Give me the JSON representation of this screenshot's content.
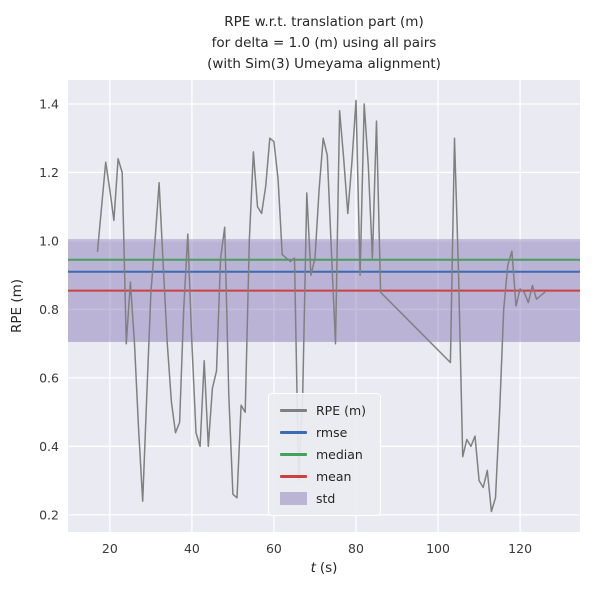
{
  "figure": {
    "title_lines": [
      "RPE w.r.t. translation part (m)",
      "for delta = 1.0 (m) using all pairs",
      "(with Sim(3) Umeyama alignment)"
    ],
    "xlabel_var": "t",
    "xlabel_unit": "(s)",
    "ylabel": "RPE (m)"
  },
  "chart_data": {
    "type": "line",
    "title": "RPE w.r.t. translation part (m) for delta = 1.0 (m) using all pairs (with Sim(3) Umeyama alignment)",
    "xlabel": "t (s)",
    "ylabel": "RPE (m)",
    "xlim": [
      9.8,
      134.6
    ],
    "ylim": [
      0.15,
      1.47
    ],
    "xticks": [
      20,
      40,
      60,
      80,
      100,
      120
    ],
    "yticks": [
      0.2,
      0.4,
      0.6,
      0.8,
      1.0,
      1.2,
      1.4
    ],
    "grid": true,
    "legend_position": "lower center",
    "series": [
      {
        "name": "RPE (m)",
        "color": "#808080",
        "x": [
          17,
          18,
          19,
          20,
          21,
          22,
          23,
          24,
          25,
          26,
          27,
          28,
          29,
          30,
          31,
          32,
          33,
          34,
          35,
          36,
          37,
          38,
          39,
          40,
          41,
          42,
          43,
          44,
          45,
          46,
          47,
          48,
          49,
          50,
          51,
          52,
          53,
          54,
          55,
          56,
          57,
          58,
          59,
          60,
          61,
          62,
          63,
          64,
          65,
          66,
          67,
          68,
          69,
          70,
          71,
          72,
          73,
          74,
          75,
          76,
          77,
          78,
          79,
          80,
          81,
          82,
          83,
          84,
          85,
          86,
          103,
          104,
          105,
          106,
          107,
          108,
          109,
          110,
          111,
          112,
          113,
          114,
          115,
          116,
          117,
          118,
          119,
          120,
          121,
          122,
          123,
          124,
          125,
          126
        ],
        "y": [
          0.97,
          1.1,
          1.23,
          1.15,
          1.06,
          1.24,
          1.2,
          0.7,
          0.88,
          0.7,
          0.45,
          0.24,
          0.55,
          0.85,
          1.0,
          1.17,
          0.93,
          0.7,
          0.53,
          0.44,
          0.47,
          0.8,
          1.02,
          0.7,
          0.44,
          0.4,
          0.65,
          0.4,
          0.57,
          0.62,
          0.95,
          1.04,
          0.55,
          0.26,
          0.25,
          0.52,
          0.5,
          1.0,
          1.26,
          1.1,
          1.08,
          1.16,
          1.3,
          1.29,
          1.18,
          0.96,
          0.95,
          0.94,
          0.95,
          0.3,
          0.55,
          1.14,
          0.9,
          0.95,
          1.15,
          1.3,
          1.25,
          0.97,
          0.7,
          1.38,
          1.24,
          1.08,
          1.23,
          1.41,
          0.9,
          1.4,
          1.22,
          0.95,
          1.35,
          0.85,
          0.645,
          1.3,
          0.9,
          0.37,
          0.42,
          0.4,
          0.43,
          0.3,
          0.28,
          0.33,
          0.21,
          0.25,
          0.5,
          0.8,
          0.93,
          0.97,
          0.81,
          0.86,
          0.85,
          0.82,
          0.87,
          0.83,
          0.84,
          0.85
        ]
      }
    ],
    "stats": {
      "rmse": {
        "value": 0.91,
        "color": "#3b6bb0"
      },
      "median": {
        "value": 0.945,
        "color": "#44a159"
      },
      "mean": {
        "value": 0.855,
        "color": "#cc4043"
      },
      "std_band": {
        "low": 0.705,
        "high": 1.005,
        "color": "#8172b2",
        "opacity": 0.45
      }
    },
    "legend": [
      {
        "label": "RPE (m)",
        "type": "line",
        "color": "#808080"
      },
      {
        "label": "rmse",
        "type": "line",
        "color": "#3b6bb0"
      },
      {
        "label": "median",
        "type": "line",
        "color": "#44a159"
      },
      {
        "label": "mean",
        "type": "line",
        "color": "#cc4043"
      },
      {
        "label": "std",
        "type": "patch",
        "color": "#8172b2",
        "opacity": 0.45
      }
    ],
    "colors": {
      "background": "#eaeaf2",
      "grid": "#ffffff",
      "text": "#262626",
      "tick_text": "#3a3a3a"
    }
  }
}
